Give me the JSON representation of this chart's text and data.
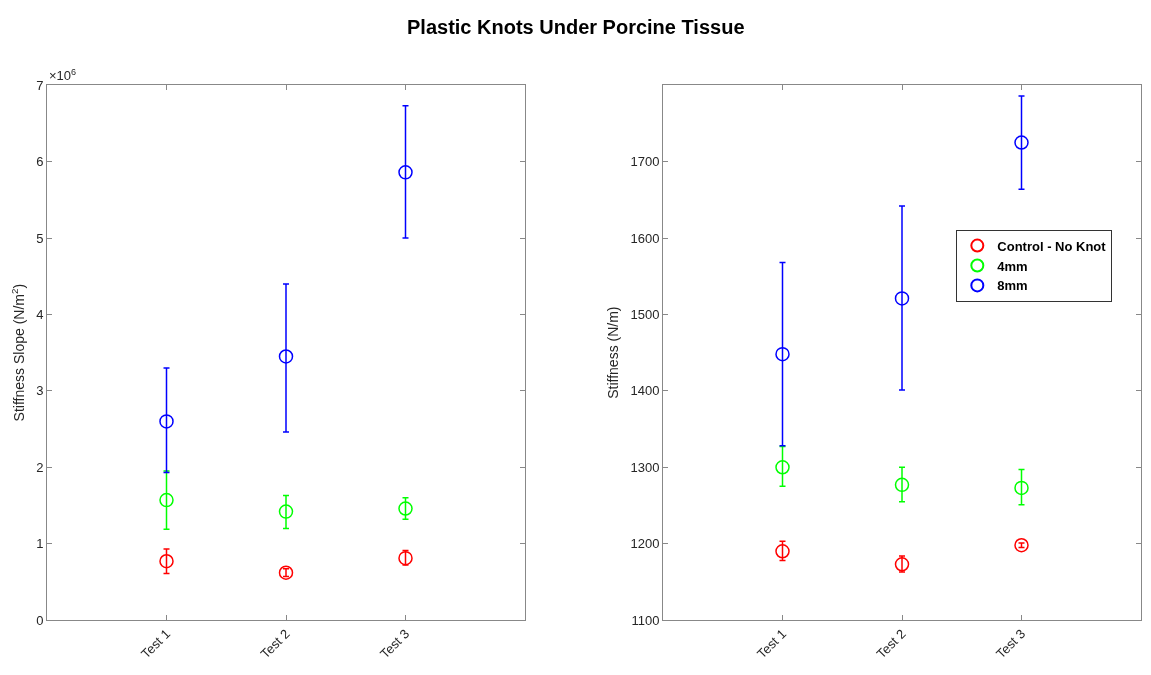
{
  "chart_data": [
    {
      "type": "scatter",
      "title": "Plastic Knots Under Porcine Tissue",
      "ylabel": "Stiffness Slope (N/m$^{2}$)",
      "categories": [
        "Test 1",
        "Test 2",
        "Test 3"
      ],
      "ylim": [
        0,
        7
      ],
      "yticks": [
        0,
        1,
        2,
        3,
        4,
        5,
        6,
        7
      ],
      "marker": "circle",
      "grid": false,
      "legend": false,
      "annotations": [
        "×10$^{6}$"
      ],
      "series": [
        {
          "color": "#ff0000",
          "values": [
            0.77,
            0.62,
            0.81
          ],
          "errors": [
            [
              0.61,
              0.93
            ],
            [
              0.57,
              0.67
            ],
            [
              0.72,
              0.91
            ]
          ]
        },
        {
          "color": "#00ff00",
          "values": [
            1.57,
            1.42,
            1.46
          ],
          "errors": [
            [
              1.19,
              1.95
            ],
            [
              1.2,
              1.63
            ],
            [
              1.32,
              1.6
            ]
          ]
        },
        {
          "color": "#0000ff",
          "values": [
            2.6,
            3.45,
            5.86
          ],
          "errors": [
            [
              1.93,
              3.3
            ],
            [
              2.46,
              4.4
            ],
            [
              5.0,
              6.73
            ]
          ]
        }
      ]
    },
    {
      "type": "scatter",
      "ylabel": "Stiffness (N/m)",
      "categories": [
        "Test 1",
        "Test 2",
        "Test 3"
      ],
      "ylim": [
        1100,
        1800
      ],
      "yticks": [
        1100,
        1200,
        1300,
        1400,
        1500,
        1600,
        1700
      ],
      "marker": "circle",
      "grid": false,
      "legend": "top right",
      "series": [
        {
          "name": "Control - No Knot",
          "color": "#ff0000",
          "values": [
            1190,
            1173,
            1198
          ],
          "errors": [
            [
              1178,
              1203
            ],
            [
              1163,
              1184
            ],
            [
              1195,
              1201
            ]
          ]
        },
        {
          "name": "4mm",
          "color": "#00ff00",
          "values": [
            1300,
            1277,
            1273
          ],
          "errors": [
            [
              1275,
              1327
            ],
            [
              1255,
              1300
            ],
            [
              1251,
              1297
            ]
          ]
        },
        {
          "name": "8mm",
          "color": "#0000ff",
          "values": [
            1448,
            1521,
            1725
          ],
          "errors": [
            [
              1328,
              1568
            ],
            [
              1401,
              1642
            ],
            [
              1664,
              1786
            ]
          ]
        }
      ]
    }
  ]
}
